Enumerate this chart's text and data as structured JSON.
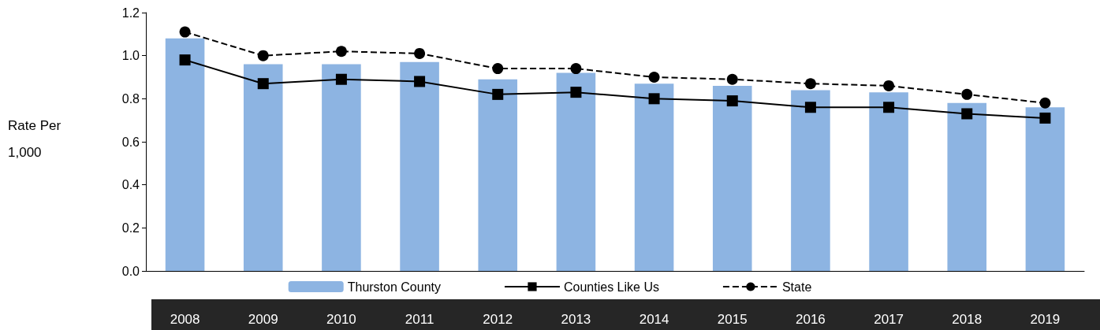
{
  "chart_data": {
    "type": "bar",
    "ylabel": "Rate Per\n1,000",
    "categories": [
      "2008",
      "2009",
      "2010",
      "2011",
      "2012",
      "2013",
      "2014",
      "2015",
      "2016",
      "2017",
      "2018",
      "2019"
    ],
    "series": [
      {
        "name": "Thurston County",
        "color": "#8db4e2",
        "values": [
          1.08,
          0.96,
          0.96,
          0.97,
          0.89,
          0.92,
          0.87,
          0.86,
          0.84,
          0.83,
          0.78,
          0.76
        ]
      },
      {
        "name": "Counties Like Us",
        "type": "line",
        "color": "#000000",
        "marker": "square",
        "line_style": "solid",
        "values": [
          0.98,
          0.87,
          0.89,
          0.88,
          0.82,
          0.83,
          0.8,
          0.79,
          0.76,
          0.76,
          0.73,
          0.71
        ]
      },
      {
        "name": "State",
        "type": "line",
        "color": "#000000",
        "marker": "circle",
        "line_style": "dashed",
        "values": [
          1.11,
          1.0,
          1.02,
          1.01,
          0.94,
          0.94,
          0.9,
          0.89,
          0.87,
          0.86,
          0.82,
          0.78
        ]
      }
    ],
    "ylim": [
      0,
      1.2
    ],
    "yticks": [
      {
        "value": 0,
        "label": "0.0"
      },
      0.2,
      0.4,
      0.6,
      0.8,
      {
        "value": 1,
        "label": "1.0"
      },
      1.2
    ],
    "grid": false,
    "legend": "bottom"
  }
}
